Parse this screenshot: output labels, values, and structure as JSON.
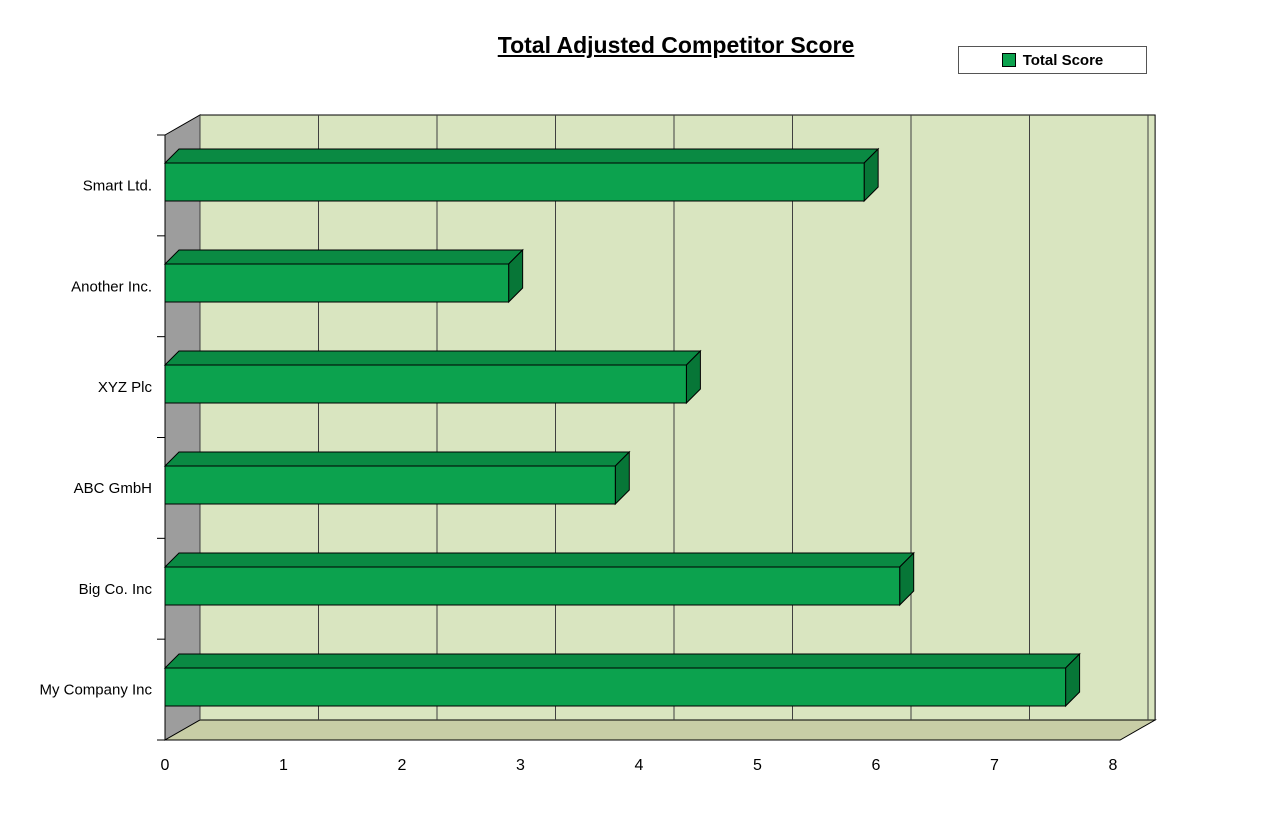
{
  "chart_data": {
    "type": "bar",
    "orientation": "horizontal",
    "style": "3d",
    "title": "Total Adjusted Competitor Score",
    "categories": [
      "Smart Ltd.",
      "Another Inc.",
      "XYZ Plc",
      "ABC GmbH",
      "Big Co. Inc",
      "My Company Inc"
    ],
    "categories_order": "top-to-bottom",
    "series": [
      {
        "name": "Total Score",
        "values": [
          5.9,
          2.9,
          4.4,
          3.8,
          6.2,
          7.6
        ]
      }
    ],
    "xlabel": "",
    "ylabel": "",
    "xlim": [
      0,
      8
    ],
    "xticks": [
      0,
      1,
      2,
      3,
      4,
      5,
      6,
      7,
      8
    ],
    "grid": true,
    "legend_position": "top-right",
    "colors": {
      "bar_front": "#0ca24e",
      "bar_top": "#0a8a43",
      "bar_side": "#077637",
      "wall_back": "#d9e5c0",
      "wall_side": "#9d9d9d",
      "floor": "#c8cda6",
      "gridline": "#404040",
      "outline": "#000000"
    }
  }
}
